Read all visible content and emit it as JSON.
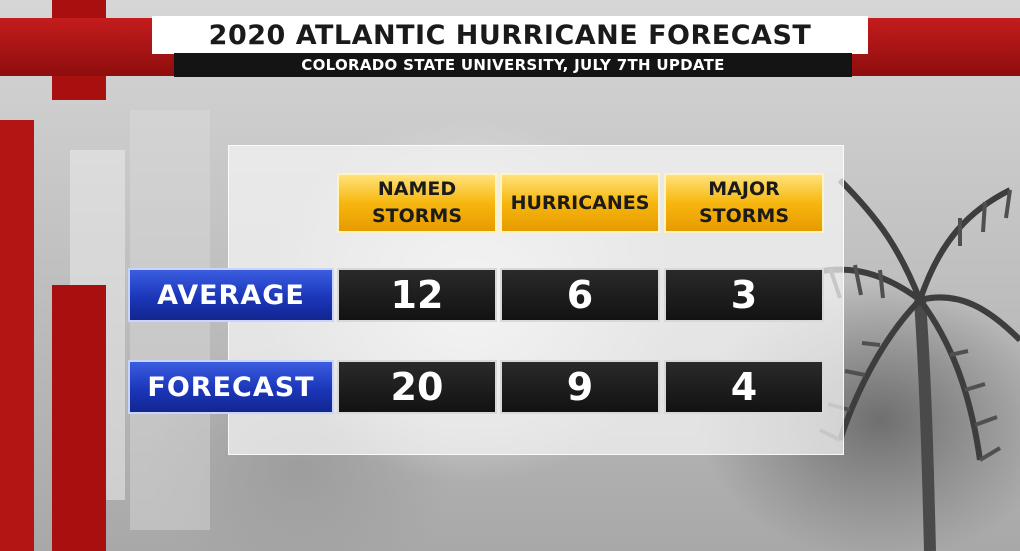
{
  "header": {
    "title": "2020 ATLANTIC HURRICANE FORECAST",
    "subtitle": "COLORADO STATE UNIVERSITY, JULY 7TH UPDATE"
  },
  "table": {
    "columns": [
      "NAMED\nSTORMS",
      "HURRICANES",
      "MAJOR\nSTORMS"
    ],
    "rows": [
      {
        "label": "AVERAGE",
        "values": [
          "12",
          "6",
          "3"
        ]
      },
      {
        "label": "FORECAST",
        "values": [
          "20",
          "9",
          "4"
        ]
      }
    ]
  },
  "colors": {
    "brand_red": "#b31515",
    "header_gold": "#f7b70f",
    "row_label_blue": "#1b36b9",
    "value_black": "#121212"
  }
}
